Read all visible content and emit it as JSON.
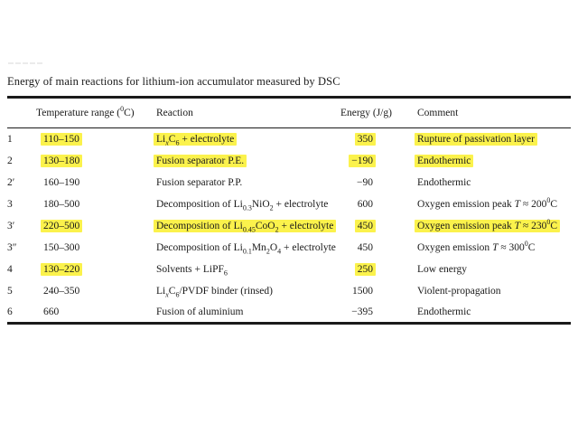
{
  "title": "Energy of main reactions for lithium-ion accumulator measured by DSC",
  "colors": {
    "highlight": "#fbf24c",
    "text": "#1a1a1a",
    "rule": "#1a1a1a",
    "background": "#ffffff"
  },
  "table": {
    "headers": {
      "row_label": "",
      "temperature": [
        {
          "t": "Temperature range ("
        },
        {
          "t": "0",
          "sup": true
        },
        {
          "t": "C)"
        }
      ],
      "reaction": "Reaction",
      "energy": "Energy (J/g)",
      "comment": "Comment"
    },
    "rows": [
      {
        "id": "1",
        "temp": "110–150",
        "temp_hl": true,
        "reaction": [
          {
            "t": "Li"
          },
          {
            "t": "x",
            "sub": true,
            "i": true
          },
          {
            "t": "C"
          },
          {
            "t": "6",
            "sub": true
          },
          {
            "t": " + electrolyte"
          }
        ],
        "reaction_hl": true,
        "energy": "350",
        "energy_hl": true,
        "comment": [
          {
            "t": "Rupture of passivation layer"
          }
        ],
        "comment_hl": true
      },
      {
        "id": "2",
        "temp": "130–180",
        "temp_hl": true,
        "reaction": [
          {
            "t": "Fusion separator P.E."
          }
        ],
        "reaction_hl": true,
        "energy": "−190",
        "energy_hl": true,
        "comment": [
          {
            "t": "Endothermic"
          }
        ],
        "comment_hl": true
      },
      {
        "id": "2′",
        "temp": "160–190",
        "temp_hl": false,
        "reaction": [
          {
            "t": "Fusion separator P.P."
          }
        ],
        "reaction_hl": false,
        "energy": "−90",
        "energy_hl": false,
        "comment": [
          {
            "t": "Endothermic"
          }
        ],
        "comment_hl": false
      },
      {
        "id": "3",
        "temp": "180–500",
        "temp_hl": false,
        "reaction": [
          {
            "t": "Decomposition of Li"
          },
          {
            "t": "0.3",
            "sub": true
          },
          {
            "t": "NiO"
          },
          {
            "t": "2",
            "sub": true
          },
          {
            "t": " + electrolyte"
          }
        ],
        "reaction_hl": false,
        "energy": "600",
        "energy_hl": false,
        "comment": [
          {
            "t": "Oxygen emission peak "
          },
          {
            "t": "T",
            "i": true
          },
          {
            "t": " ≈ 200"
          },
          {
            "t": "0",
            "sup": true
          },
          {
            "t": "C"
          }
        ],
        "comment_hl": false
      },
      {
        "id": "3′",
        "temp": "220–500",
        "temp_hl": true,
        "reaction": [
          {
            "t": "Decomposition of Li"
          },
          {
            "t": "0.45",
            "sub": true
          },
          {
            "t": "CoO"
          },
          {
            "t": "2",
            "sub": true
          },
          {
            "t": " + electrolyte"
          }
        ],
        "reaction_hl": true,
        "energy": "450",
        "energy_hl": true,
        "comment": [
          {
            "t": "Oxygen emission peak "
          },
          {
            "t": "T",
            "i": true
          },
          {
            "t": " ≈ 230"
          },
          {
            "t": "0",
            "sup": true
          },
          {
            "t": "C"
          }
        ],
        "comment_hl": true
      },
      {
        "id": "3″",
        "temp": "150–300",
        "temp_hl": false,
        "reaction": [
          {
            "t": "Decomposition of Li"
          },
          {
            "t": "0.1",
            "sub": true
          },
          {
            "t": "Mn"
          },
          {
            "t": "2",
            "sub": true
          },
          {
            "t": "O"
          },
          {
            "t": "4",
            "sub": true
          },
          {
            "t": " + electrolyte"
          }
        ],
        "reaction_hl": false,
        "energy": "450",
        "energy_hl": false,
        "comment": [
          {
            "t": "Oxygen emission "
          },
          {
            "t": "T",
            "i": true
          },
          {
            "t": " ≈ 300"
          },
          {
            "t": "0",
            "sup": true
          },
          {
            "t": "C"
          }
        ],
        "comment_hl": false
      },
      {
        "id": "4",
        "temp": "130–220",
        "temp_hl": true,
        "reaction": [
          {
            "t": "Solvents + LiPF"
          },
          {
            "t": "6",
            "sub": true
          }
        ],
        "reaction_hl": false,
        "energy": "250",
        "energy_hl": true,
        "comment": [
          {
            "t": "Low energy"
          }
        ],
        "comment_hl": false
      },
      {
        "id": "5",
        "temp": "240–350",
        "temp_hl": false,
        "reaction": [
          {
            "t": "Li"
          },
          {
            "t": "x",
            "sub": true,
            "i": true
          },
          {
            "t": "C"
          },
          {
            "t": "6",
            "sub": true
          },
          {
            "t": "/PVDF binder (rinsed)"
          }
        ],
        "reaction_hl": false,
        "energy": "1500",
        "energy_hl": false,
        "comment": [
          {
            "t": "Violent-propagation"
          }
        ],
        "comment_hl": false
      },
      {
        "id": "6",
        "temp": "660",
        "temp_hl": false,
        "reaction": [
          {
            "t": "Fusion of aluminium"
          }
        ],
        "reaction_hl": false,
        "energy": "−395",
        "energy_hl": false,
        "comment": [
          {
            "t": "Endothermic"
          }
        ],
        "comment_hl": false
      }
    ]
  }
}
